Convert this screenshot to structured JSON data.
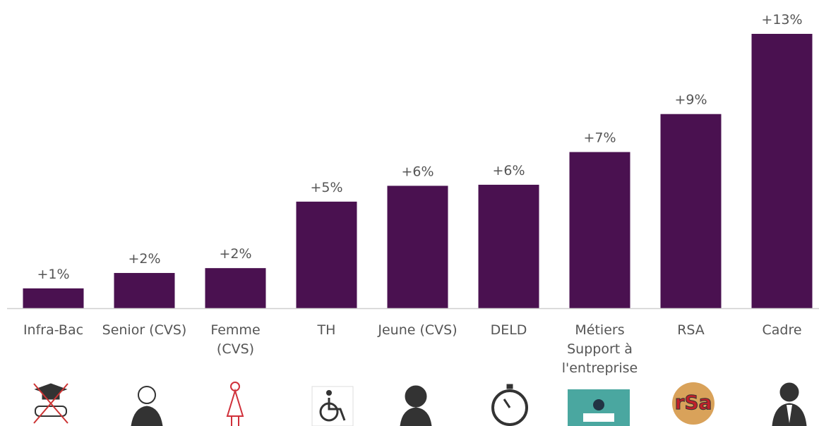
{
  "chart_data": {
    "type": "bar",
    "categories": [
      "Infra-Bac",
      "Senior (CVS)",
      "Femme (CVS)",
      "TH",
      "Jeune (CVS)",
      "DELD",
      "Métiers Support à l'entreprise",
      "RSA",
      "Cadre"
    ],
    "values": [
      0.94,
      1.67,
      1.9,
      5.05,
      5.8,
      5.85,
      7.4,
      9.2,
      13.0
    ],
    "value_labels": [
      "+1%",
      "+2%",
      "+2%",
      "+5%",
      "+6%",
      "+6%",
      "+7%",
      "+9%",
      "+13%"
    ],
    "color": "#4a1150"
  }
}
